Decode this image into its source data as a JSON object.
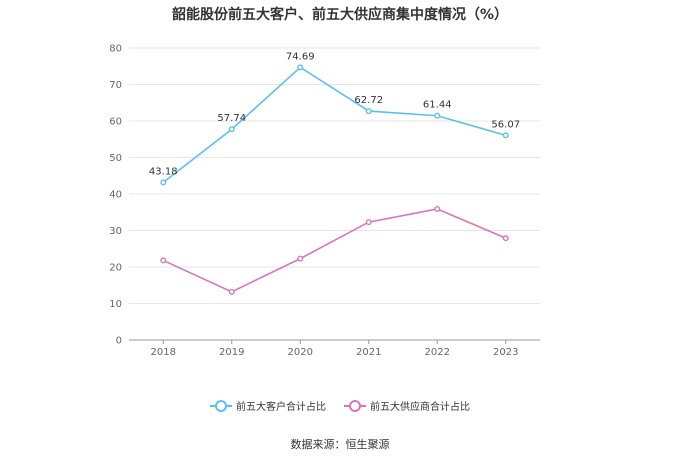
{
  "chart_data": {
    "type": "line",
    "title": "韶能股份前五大客户、前五大供应商集中度情况（%）",
    "categories": [
      "2018",
      "2019",
      "2020",
      "2021",
      "2022",
      "2023"
    ],
    "y_ticks": [
      "0",
      "10",
      "20",
      "30",
      "40",
      "50",
      "60",
      "70",
      "80"
    ],
    "ylim": [
      0,
      80
    ],
    "grid": true,
    "legend_position": "bottom",
    "series": [
      {
        "name": "前五大客户合计占比",
        "color": "#5bc0ef",
        "values": [
          43.18,
          57.74,
          74.69,
          62.72,
          61.44,
          56.07
        ],
        "labels": [
          "43.18",
          "57.74",
          "74.69",
          "62.72",
          "61.44",
          "56.07"
        ]
      },
      {
        "name": "前五大供应商合计占比",
        "color": "#d877b8",
        "values": [
          21.8,
          13.2,
          22.3,
          32.3,
          35.9,
          27.9
        ]
      }
    ],
    "source": "数据来源：恒生聚源"
  }
}
